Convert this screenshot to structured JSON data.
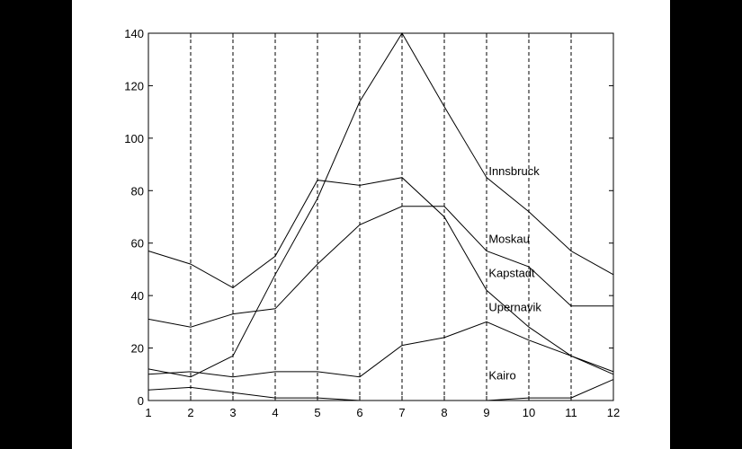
{
  "chart_data": {
    "type": "line",
    "x": [
      1,
      2,
      3,
      4,
      5,
      6,
      7,
      8,
      9,
      10,
      11,
      12
    ],
    "xlim": [
      1,
      12
    ],
    "ylim": [
      0,
      140
    ],
    "xticks": [
      1,
      2,
      3,
      4,
      5,
      6,
      7,
      8,
      9,
      10,
      11,
      12
    ],
    "yticks": [
      0,
      20,
      40,
      60,
      80,
      100,
      120,
      140
    ],
    "grid": "vertical dashed",
    "title": "",
    "xlabel": "",
    "ylabel": "",
    "line_color": "#000000",
    "series": [
      {
        "name": "Innsbruck",
        "label_x": 9.05,
        "label_y": 86,
        "values": [
          12,
          9,
          17,
          48,
          77,
          114,
          140,
          112,
          85,
          72,
          57,
          48
        ]
      },
      {
        "name": "Moskau",
        "label_x": 9.05,
        "label_y": 60,
        "values": [
          31,
          28,
          33,
          35,
          52,
          67,
          74,
          74,
          57,
          51,
          36,
          36
        ]
      },
      {
        "name": "Kapstadt",
        "label_x": 9.05,
        "label_y": 47,
        "values": [
          57,
          52,
          43,
          55,
          84,
          82,
          85,
          70,
          42,
          28,
          17,
          10
        ]
      },
      {
        "name": "Upernavik",
        "label_x": 9.05,
        "label_y": 34,
        "values": [
          10,
          11,
          9,
          11,
          11,
          9,
          21,
          24,
          30,
          23,
          17,
          11
        ]
      },
      {
        "name": "Kairo",
        "label_x": 9.05,
        "label_y": 8,
        "values": [
          4,
          5,
          3,
          1,
          1,
          0,
          0,
          0,
          0,
          1,
          1,
          8
        ]
      }
    ]
  }
}
